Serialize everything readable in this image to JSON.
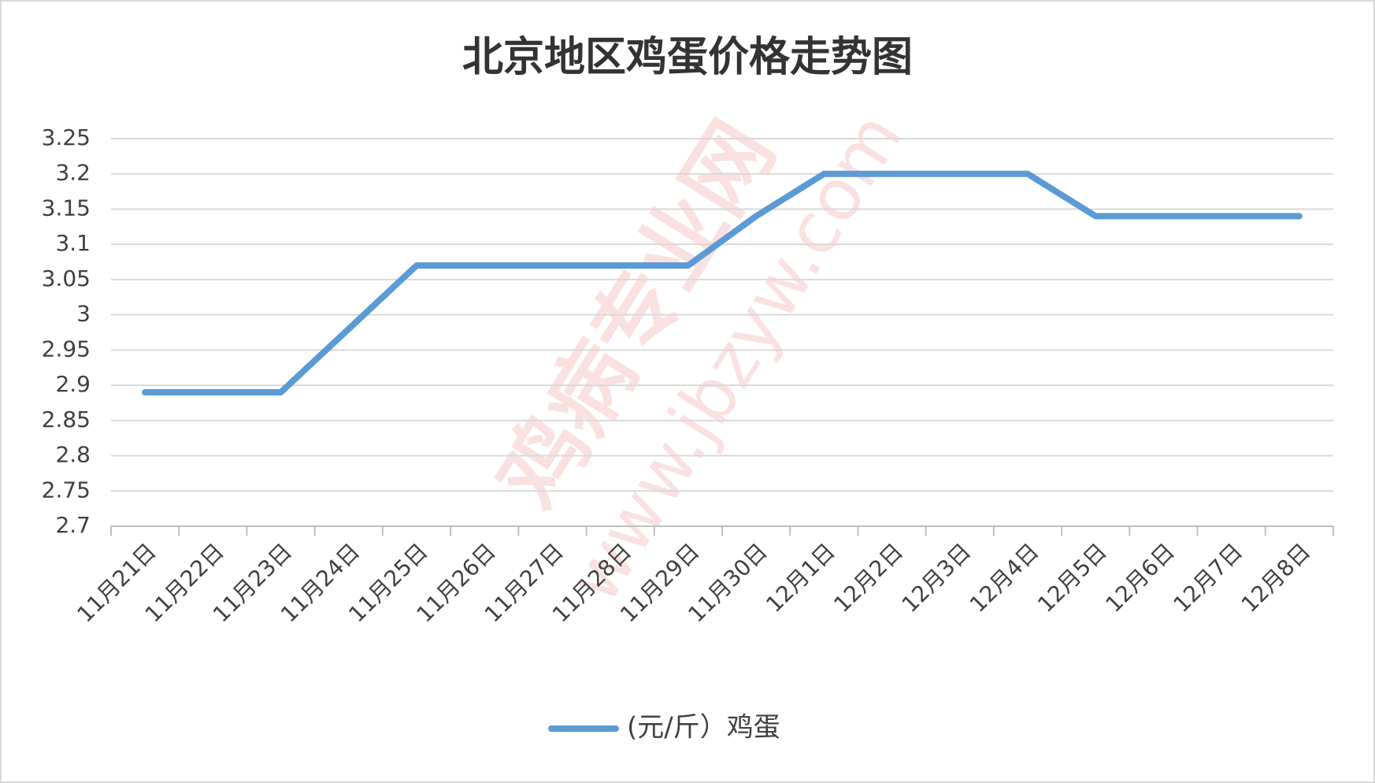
{
  "chart_data": {
    "type": "line",
    "title": "北京地区鸡蛋价格走势图",
    "watermark": [
      "鸡病专业网",
      "www.jbzyw.com"
    ],
    "categories": [
      "11月21日",
      "11月22日",
      "11月23日",
      "11月24日",
      "11月25日",
      "11月26日",
      "11月27日",
      "11月28日",
      "11月29日",
      "11月30日",
      "12月1日",
      "12月2日",
      "12月3日",
      "12月4日",
      "12月5日",
      "12月6日",
      "12月7日",
      "12月8日"
    ],
    "series": [
      {
        "name": "(元/斤）鸡蛋",
        "color": "#5b9bd5",
        "values": [
          2.89,
          2.89,
          2.89,
          2.98,
          3.07,
          3.07,
          3.07,
          3.07,
          3.07,
          3.14,
          3.2,
          3.2,
          3.2,
          3.2,
          3.14,
          3.14,
          3.14,
          3.14
        ]
      }
    ],
    "ylim": [
      2.7,
      3.25
    ],
    "yticks": [
      2.7,
      2.75,
      2.8,
      2.85,
      2.9,
      2.95,
      3,
      3.05,
      3.1,
      3.15,
      3.2,
      3.25
    ],
    "grid": true,
    "legend": "bottom"
  }
}
